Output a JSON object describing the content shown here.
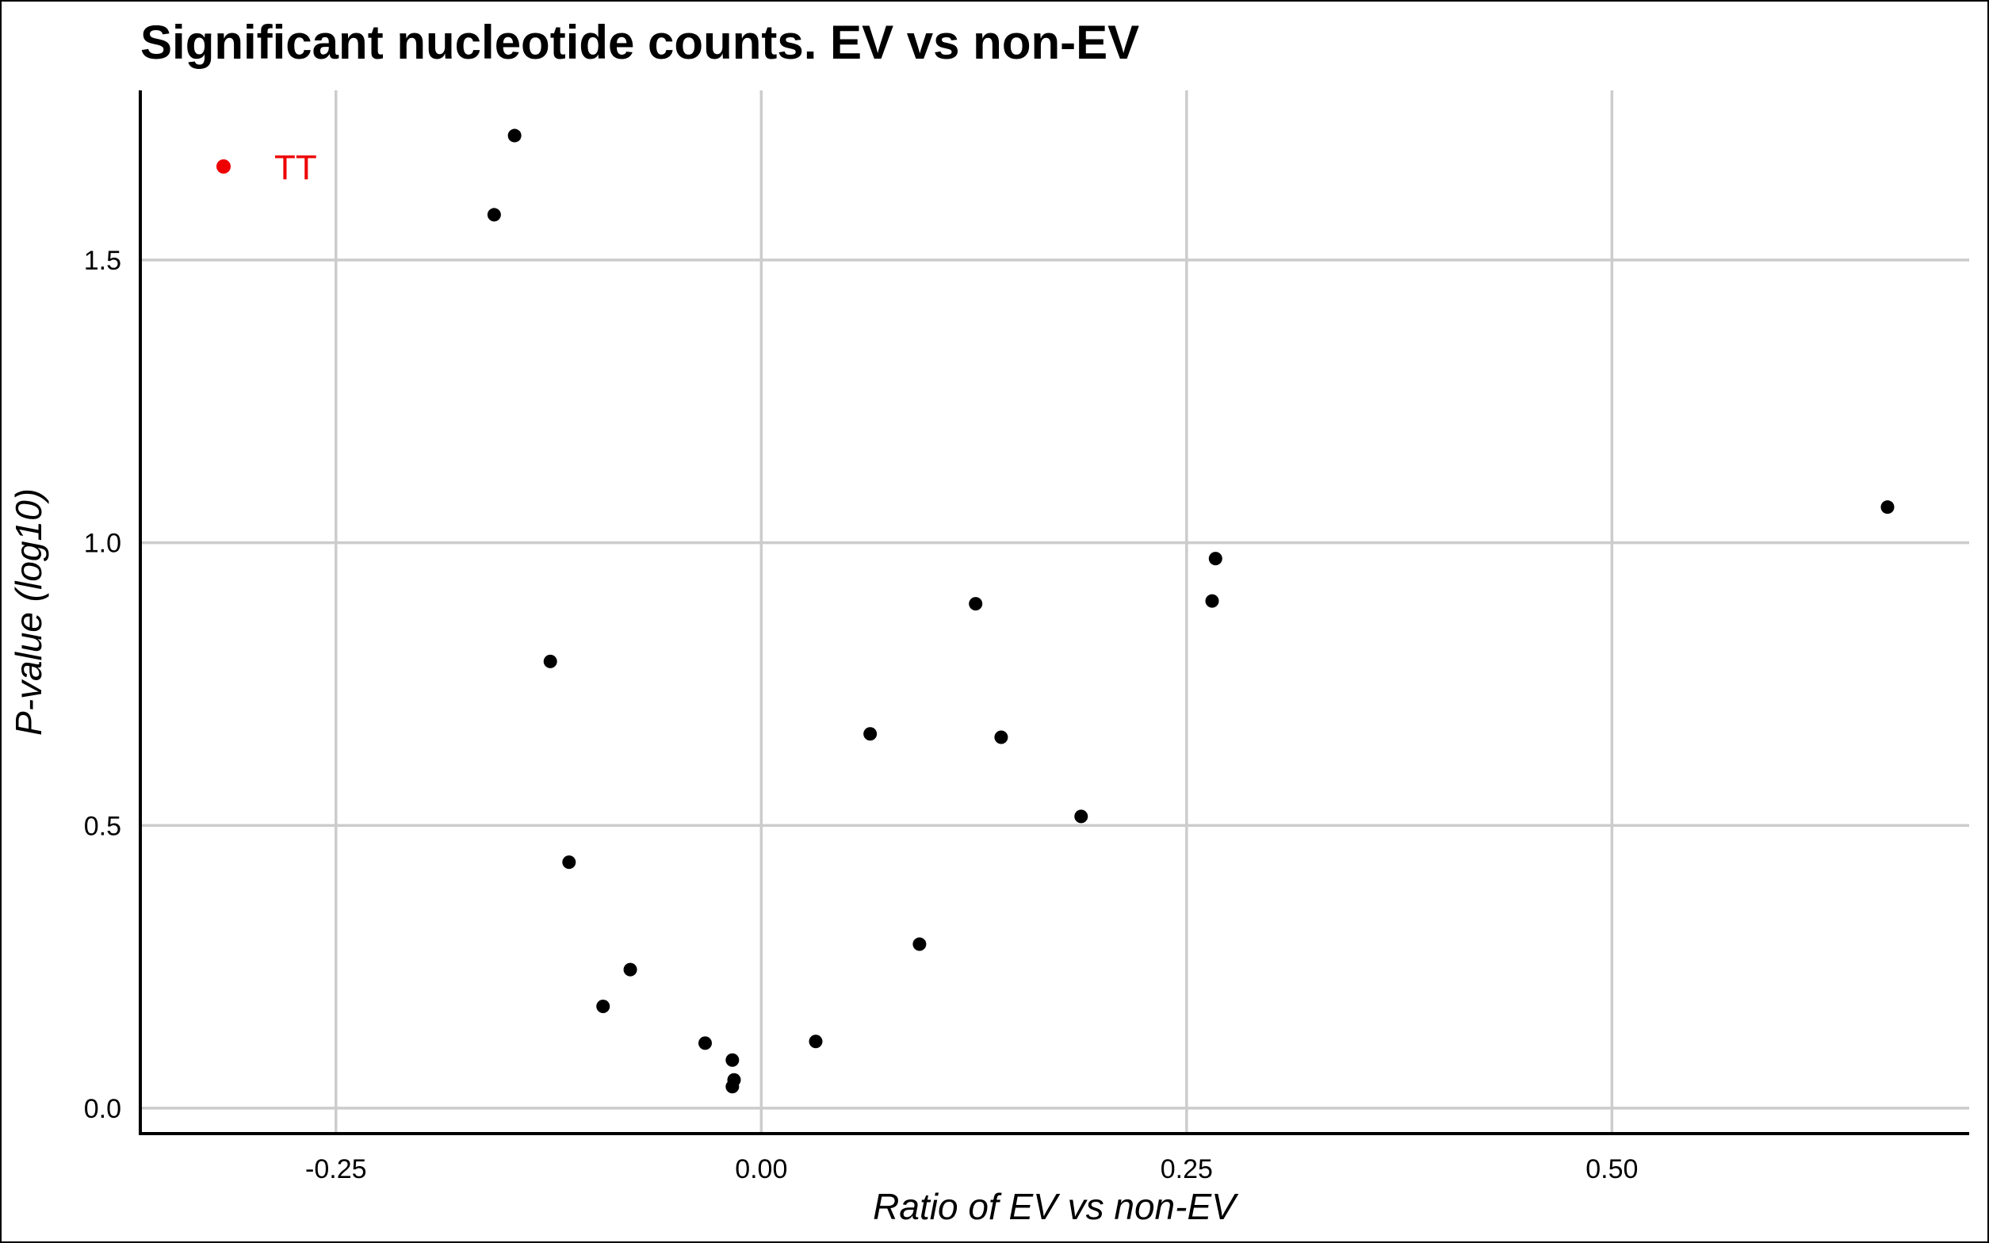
{
  "chart_data": {
    "type": "scatter",
    "title": "Significant nucleotide counts. EV vs non-EV",
    "xlabel": "Ratio of EV vs non-EV",
    "ylabel": "P-value (log10)",
    "xlim": [
      -0.365,
      0.71
    ],
    "ylim": [
      -0.045,
      1.8
    ],
    "xticks": [
      {
        "value": -0.25,
        "label": "-0.25"
      },
      {
        "value": 0.0,
        "label": "0.00"
      },
      {
        "value": 0.25,
        "label": "0.25"
      },
      {
        "value": 0.5,
        "label": "0.50"
      }
    ],
    "yticks": [
      {
        "value": 0.0,
        "label": "0.0"
      },
      {
        "value": 0.5,
        "label": "0.5"
      },
      {
        "value": 1.0,
        "label": "1.0"
      },
      {
        "value": 1.5,
        "label": "1.5"
      }
    ],
    "grid": true,
    "legend": {
      "placement": "top-left",
      "entries": [
        {
          "label": "TT",
          "color": "#ee0000"
        }
      ]
    },
    "point_color": "#000000",
    "points": [
      {
        "x": -0.145,
        "y": 1.72
      },
      {
        "x": -0.157,
        "y": 1.58
      },
      {
        "x": -0.124,
        "y": 0.79
      },
      {
        "x": -0.113,
        "y": 0.435
      },
      {
        "x": -0.077,
        "y": 0.245
      },
      {
        "x": -0.093,
        "y": 0.18
      },
      {
        "x": -0.033,
        "y": 0.115
      },
      {
        "x": -0.017,
        "y": 0.085
      },
      {
        "x": -0.016,
        "y": 0.05
      },
      {
        "x": -0.017,
        "y": 0.038
      },
      {
        "x": 0.032,
        "y": 0.118
      },
      {
        "x": 0.064,
        "y": 0.662
      },
      {
        "x": 0.093,
        "y": 0.29
      },
      {
        "x": 0.126,
        "y": 0.892
      },
      {
        "x": 0.141,
        "y": 0.656
      },
      {
        "x": 0.188,
        "y": 0.516
      },
      {
        "x": 0.265,
        "y": 0.897
      },
      {
        "x": 0.267,
        "y": 0.972
      },
      {
        "x": 0.662,
        "y": 1.063
      }
    ]
  }
}
